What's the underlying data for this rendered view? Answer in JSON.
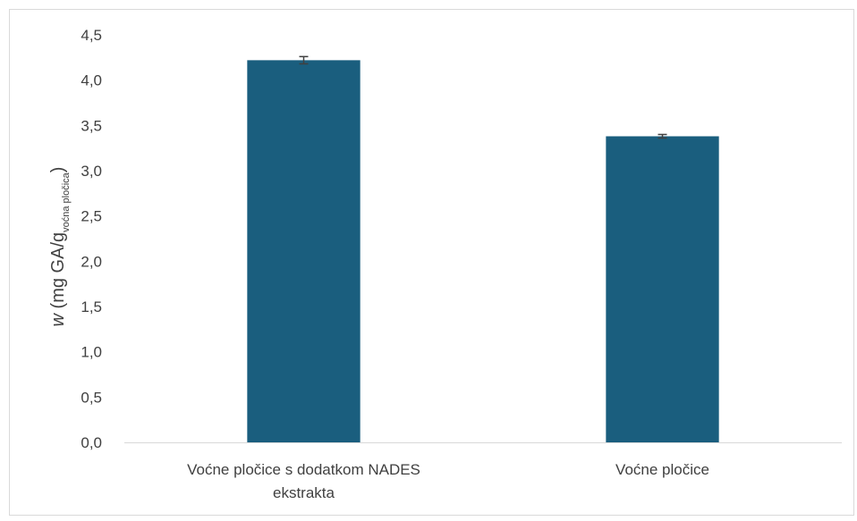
{
  "chart_data": {
    "type": "bar",
    "categories": [
      "Voćne pločice s dodatkom NADES ekstrakta",
      "Voćne pločice"
    ],
    "category_lines": [
      [
        "Voćne pločice s dodatkom NADES",
        "ekstrakta"
      ],
      [
        "Voćne pločice"
      ]
    ],
    "values": [
      4.22,
      3.38
    ],
    "errors": [
      0.04,
      0.02
    ],
    "ylim": [
      0,
      4.5
    ],
    "yticks": [
      "0,0",
      "0,5",
      "1,0",
      "1,5",
      "2,0",
      "2,5",
      "3,0",
      "3,5",
      "4,0",
      "4,5"
    ],
    "ylabel": {
      "italic": "w",
      "main": " (mg GA/g",
      "subscript": "voćna pločica",
      "close": ")"
    },
    "title": "",
    "xlabel": "",
    "grid": false,
    "legend": "none",
    "colors": {
      "bar": "#1a5e7e",
      "axis": "#d9d9d9",
      "text": "#404040",
      "error_bar": "#404040"
    }
  }
}
